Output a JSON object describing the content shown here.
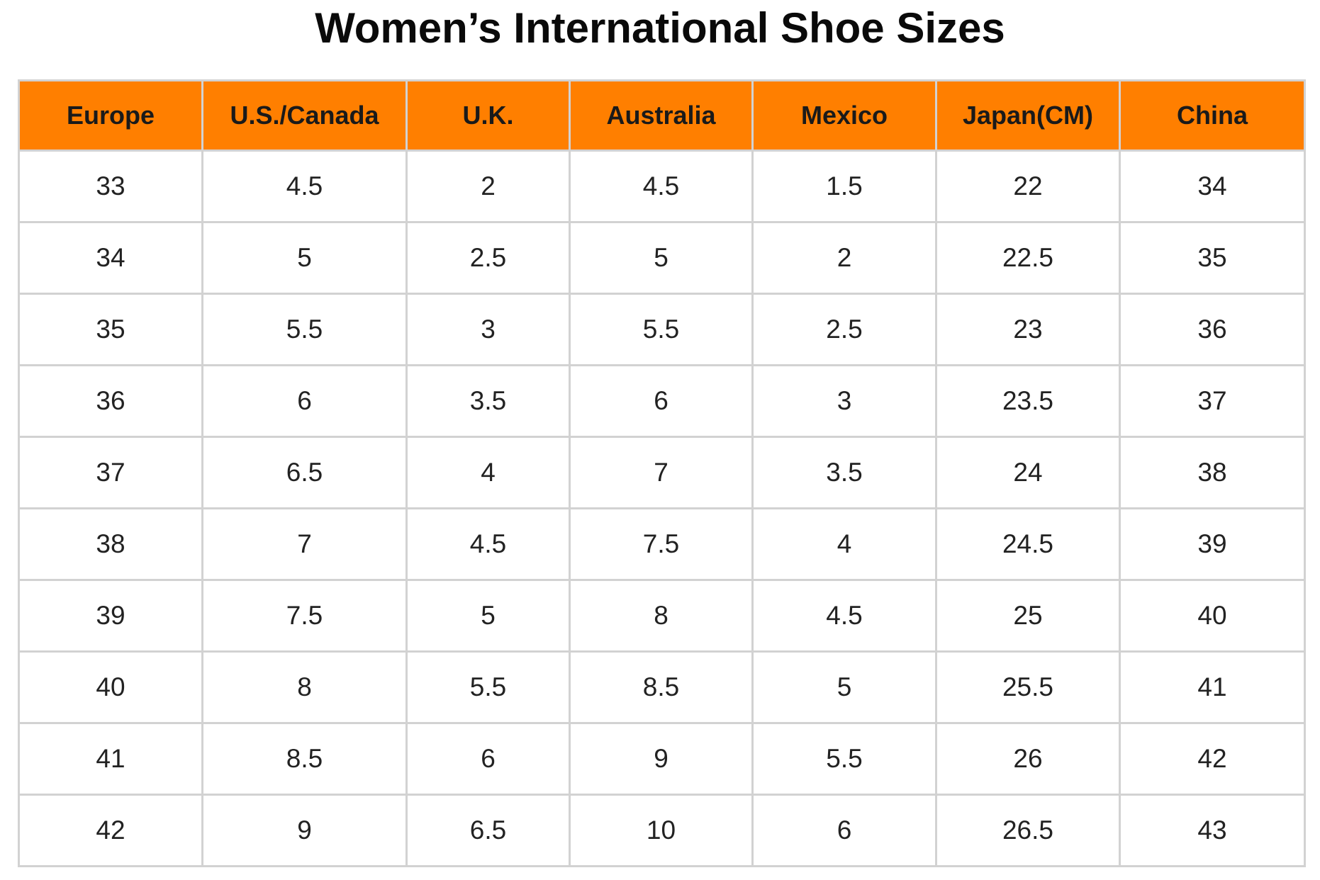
{
  "title": "Women’s International Shoe Sizes",
  "colors": {
    "header_bg": "#ff7f00",
    "border": "#d2d2d2"
  },
  "table": {
    "columns": [
      "Europe",
      "U.S./Canada",
      "U.K.",
      "Australia",
      "Mexico",
      "Japan(CM)",
      "China"
    ],
    "rows": [
      [
        "33",
        "4.5",
        "2",
        "4.5",
        "1.5",
        "22",
        "34"
      ],
      [
        "34",
        "5",
        "2.5",
        "5",
        "2",
        "22.5",
        "35"
      ],
      [
        "35",
        "5.5",
        "3",
        "5.5",
        "2.5",
        "23",
        "36"
      ],
      [
        "36",
        "6",
        "3.5",
        "6",
        "3",
        "23.5",
        "37"
      ],
      [
        "37",
        "6.5",
        "4",
        "7",
        "3.5",
        "24",
        "38"
      ],
      [
        "38",
        "7",
        "4.5",
        "7.5",
        "4",
        "24.5",
        "39"
      ],
      [
        "39",
        "7.5",
        "5",
        "8",
        "4.5",
        "25",
        "40"
      ],
      [
        "40",
        "8",
        "5.5",
        "8.5",
        "5",
        "25.5",
        "41"
      ],
      [
        "41",
        "8.5",
        "6",
        "9",
        "5.5",
        "26",
        "42"
      ],
      [
        "42",
        "9",
        "6.5",
        "10",
        "6",
        "26.5",
        "43"
      ]
    ]
  }
}
